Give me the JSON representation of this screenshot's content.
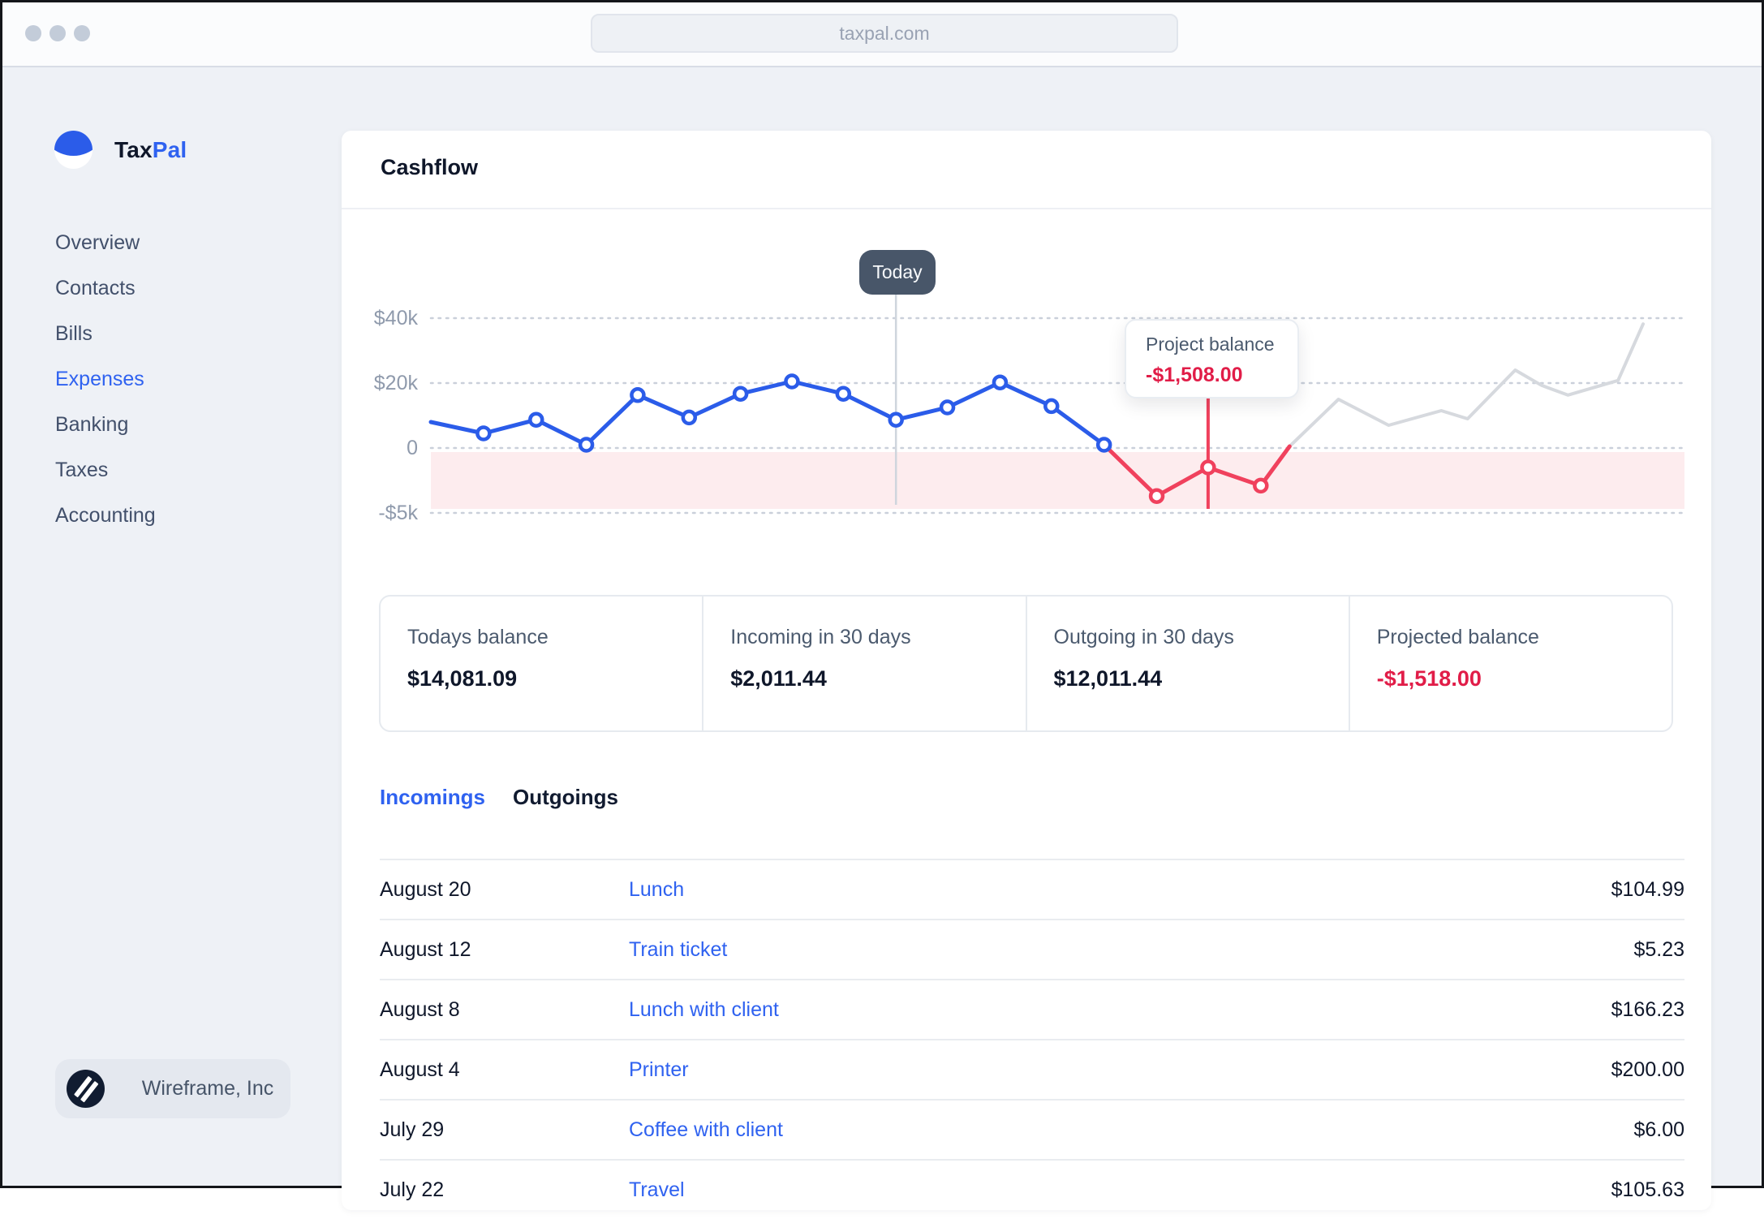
{
  "colors": {
    "accent_blue": "#2f62f0",
    "chart_blue": "#2b5ce9",
    "chart_red": "#f0415d",
    "chart_gray": "#d6d9de",
    "negative_red": "#e11d48",
    "band_pink": "#fdecee",
    "tooltip_dark": "#485669",
    "grid": "#cad0da",
    "today_line": "#cfd5dd"
  },
  "browser": {
    "url": "taxpal.com"
  },
  "sidebar": {
    "brand": {
      "first": "Tax",
      "second": "Pal"
    },
    "items": [
      {
        "label": "Overview",
        "active": false
      },
      {
        "label": "Contacts",
        "active": false
      },
      {
        "label": "Bills",
        "active": false
      },
      {
        "label": "Expenses",
        "active": true
      },
      {
        "label": "Banking",
        "active": false
      },
      {
        "label": "Taxes",
        "active": false
      },
      {
        "label": "Accounting",
        "active": false
      }
    ],
    "org": {
      "name": "Wireframe, Inc"
    }
  },
  "main": {
    "title": "Cashflow",
    "stats": [
      {
        "label": "Todays balance",
        "value": "$14,081.09",
        "negative": false
      },
      {
        "label": "Incoming in 30 days",
        "value": "$2,011.44",
        "negative": false
      },
      {
        "label": "Outgoing in 30 days",
        "value": "$12,011.44",
        "negative": false
      },
      {
        "label": "Projected balance",
        "value": "-$1,518.00",
        "negative": true
      }
    ],
    "tabs": [
      {
        "label": "Incomings",
        "active": true
      },
      {
        "label": "Outgoings",
        "active": false
      }
    ],
    "transactions": [
      {
        "date": "August 20",
        "description": "Lunch",
        "amount": "$104.99"
      },
      {
        "date": "August 12",
        "description": "Train ticket",
        "amount": "$5.23"
      },
      {
        "date": "August 8",
        "description": "Lunch with client",
        "amount": "$166.23"
      },
      {
        "date": "August 4",
        "description": "Printer",
        "amount": "$200.00"
      },
      {
        "date": "July 29",
        "description": "Coffee with client",
        "amount": "$6.00"
      },
      {
        "date": "July 22",
        "description": "Travel",
        "amount": "$105.63"
      }
    ]
  },
  "chart_data": {
    "type": "line",
    "title": "Cashflow",
    "grid": "dotted-horizontal",
    "yticks": [
      {
        "label": "$40k",
        "value": 40000
      },
      {
        "label": "$20k",
        "value": 20000
      },
      {
        "label": "0",
        "value": 0
      },
      {
        "label": "-$5k",
        "value": -5000
      }
    ],
    "negative_band": {
      "from": 0,
      "to": -5000
    },
    "today_label": "Today",
    "today_x": 0.371,
    "marker_line_x": 0.62,
    "tooltip": {
      "title": "Project balance",
      "value": "-$1,508.00"
    },
    "series": [
      {
        "name": "projected-recovery",
        "color": "#d6d9de",
        "width": 4,
        "marker_indices": [],
        "points": [
          [
            0.685,
            500
          ],
          [
            0.724,
            15000
          ],
          [
            0.764,
            7000
          ],
          [
            0.806,
            11500
          ],
          [
            0.827,
            9000
          ],
          [
            0.865,
            24000
          ],
          [
            0.886,
            19300
          ],
          [
            0.907,
            16300
          ],
          [
            0.947,
            20800
          ],
          [
            0.967,
            38200
          ]
        ]
      },
      {
        "name": "projected-negative",
        "color": "#f0415d",
        "width": 5,
        "marker_indices": [
          1,
          2,
          3
        ],
        "points": [
          [
            0.537,
            1000
          ],
          [
            0.579,
            -3700
          ],
          [
            0.62,
            -1500
          ],
          [
            0.662,
            -2900
          ],
          [
            0.685,
            500
          ]
        ]
      },
      {
        "name": "actual-balance",
        "color": "#2b5ce9",
        "width": 5,
        "marker_indices": [
          1,
          2,
          3,
          4,
          5,
          6,
          7,
          8,
          9,
          10,
          11,
          12,
          13
        ],
        "points": [
          [
            0,
            8000
          ],
          [
            0.042,
            4500
          ],
          [
            0.084,
            8700
          ],
          [
            0.124,
            1000
          ],
          [
            0.165,
            16300
          ],
          [
            0.206,
            9400
          ],
          [
            0.247,
            16700
          ],
          [
            0.288,
            20500
          ],
          [
            0.329,
            16700
          ],
          [
            0.371,
            8700
          ],
          [
            0.412,
            12500
          ],
          [
            0.454,
            20200
          ],
          [
            0.495,
            12900
          ],
          [
            0.537,
            1000
          ]
        ]
      }
    ]
  }
}
